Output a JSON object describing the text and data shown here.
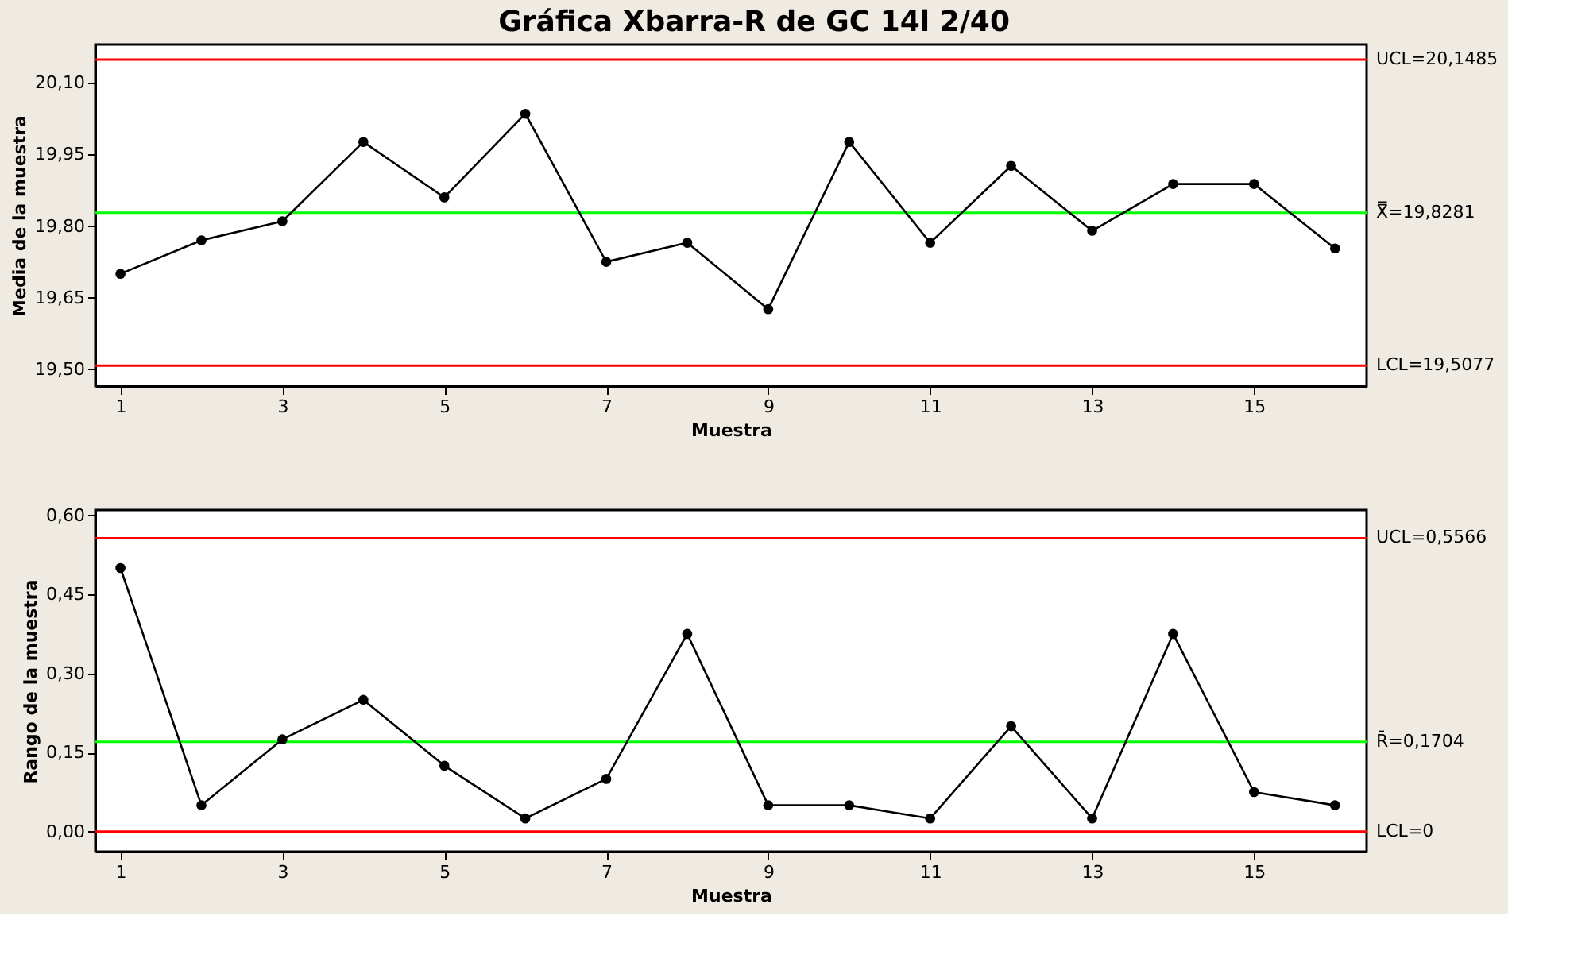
{
  "chart_data": [
    {
      "type": "line",
      "title": "Gráfica Xbarra-R de GC 14l 2/40",
      "xlabel": "Muestra",
      "ylabel": "Media de la muestra",
      "x": [
        1,
        2,
        3,
        4,
        5,
        6,
        7,
        8,
        9,
        10,
        11,
        12,
        13,
        14,
        15,
        16
      ],
      "series": [
        {
          "color": "#000000",
          "values": [
            19.7,
            19.77,
            19.81,
            19.976,
            19.86,
            20.035,
            19.725,
            19.765,
            19.626,
            19.976,
            19.765,
            19.926,
            19.79,
            19.888,
            19.888,
            19.753
          ]
        }
      ],
      "xlim": [
        0.69,
        16.39
      ],
      "xticks": [
        1,
        3,
        5,
        7,
        9,
        11,
        13,
        15
      ],
      "ylim": [
        19.465,
        20.18
      ],
      "yticks": [
        {
          "value": 19.5,
          "label": "19,50"
        },
        {
          "value": 19.65,
          "label": "19,65"
        },
        {
          "value": 19.8,
          "label": "19,80"
        },
        {
          "value": 19.95,
          "label": "19,95"
        },
        {
          "value": 20.1,
          "label": "20,10"
        }
      ],
      "ref_lines": [
        {
          "axis": "y",
          "value": 20.1485,
          "label": "UCL=20,1485",
          "color": "#ff0000"
        },
        {
          "axis": "y",
          "value": 19.8281,
          "label": "X̿=19,8281",
          "color": "#00ff00"
        },
        {
          "axis": "y",
          "value": 19.5077,
          "label": "LCL=19,5077",
          "color": "#ff0000"
        }
      ],
      "marker": "circle",
      "grid": false
    },
    {
      "type": "line",
      "xlabel": "Muestra",
      "ylabel": "Rango de la muestra",
      "x": [
        1,
        2,
        3,
        4,
        5,
        6,
        7,
        8,
        9,
        10,
        11,
        12,
        13,
        14,
        15,
        16
      ],
      "series": [
        {
          "color": "#000000",
          "values": [
            0.5,
            0.05,
            0.175,
            0.25,
            0.125,
            0.025,
            0.1,
            0.375,
            0.05,
            0.05,
            0.025,
            0.2,
            0.025,
            0.375,
            0.075,
            0.05
          ]
        }
      ],
      "xlim": [
        0.69,
        16.39
      ],
      "xticks": [
        1,
        3,
        5,
        7,
        9,
        11,
        13,
        15
      ],
      "ylim": [
        -0.038,
        0.61
      ],
      "yticks": [
        {
          "value": 0,
          "label": "0,00"
        },
        {
          "value": 0.15,
          "label": "0,15"
        },
        {
          "value": 0.3,
          "label": "0,30"
        },
        {
          "value": 0.45,
          "label": "0,45"
        },
        {
          "value": 0.6,
          "label": "0,60"
        }
      ],
      "ref_lines": [
        {
          "axis": "y",
          "value": 0.5566,
          "label": "UCL=0,5566",
          "color": "#ff0000"
        },
        {
          "axis": "y",
          "value": 0.1704,
          "label": "R̄=0,1704",
          "color": "#00ff00"
        },
        {
          "axis": "y",
          "value": 0,
          "label": "LCL=0",
          "color": "#ff0000"
        }
      ],
      "marker": "circle",
      "grid": false
    }
  ]
}
